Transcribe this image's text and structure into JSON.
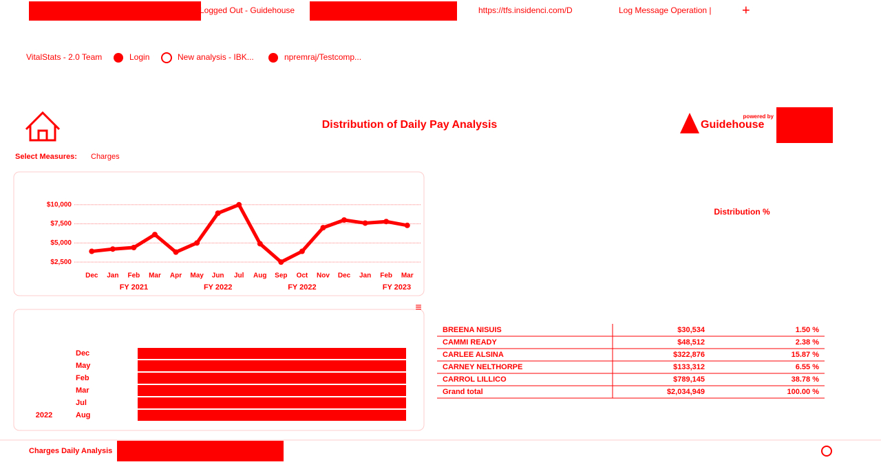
{
  "browser": {
    "tabs": [
      "Logged Out - Guidehouse",
      "https://tfs.insidenci.com/D",
      "Log Message Operation |"
    ],
    "bookmarks": [
      "VitalStats - 2.0 Team",
      "Login",
      "New analysis - IBK...",
      "npremraj/Testcomp..."
    ]
  },
  "dashboard": {
    "title": "Distribution of Daily Pay Analysis",
    "logo_caption": "powered by",
    "logo": "Guidehouse",
    "measure_label": "Select Measures:",
    "measure_value": "Charges"
  },
  "chart_data": {
    "type": "line",
    "categories": [
      "Dec",
      "Jan",
      "Feb",
      "Mar",
      "Apr",
      "May",
      "Jun",
      "Jul",
      "Aug",
      "Sep",
      "Oct",
      "Nov",
      "Dec",
      "Jan",
      "Feb",
      "Mar"
    ],
    "series": [
      {
        "name": "Charges",
        "color": "#ff0000",
        "values": [
          3900,
          4200,
          4400,
          6100,
          3800,
          5000,
          8900,
          10000,
          4900,
          2500,
          3900,
          7000,
          8000,
          7600,
          7800,
          7300
        ]
      }
    ],
    "groups": [
      "FY 2021",
      "FY 2022",
      "FY 2022",
      "FY 2023"
    ],
    "ylim": [
      1700,
      10700
    ],
    "yticks": [
      {
        "value": 2500,
        "label": "$2,500"
      },
      {
        "value": 5000,
        "label": "$5,000"
      },
      {
        "value": 7500,
        "label": "$7,500"
      },
      {
        "value": 10000,
        "label": "$10,000"
      }
    ],
    "grid": true
  },
  "bars": {
    "year": "2022",
    "categories": [
      "Dec",
      "May",
      "Feb",
      "Mar",
      "Jul",
      "Aug"
    ]
  },
  "table": {
    "header": [
      "Distribution %"
    ],
    "rows": [
      [
        "BREENA NISUIS",
        "$30,534",
        "1.50 %"
      ],
      [
        "CAMMI READY",
        "$48,512",
        "2.38 %"
      ],
      [
        "CARLEE ALSINA",
        "$322,876",
        "15.87 %"
      ],
      [
        "CARNEY NELTHORPE",
        "$133,312",
        "6.55 %"
      ],
      [
        "CARROL LILLICO",
        "$789,145",
        "38.78 %"
      ],
      [
        "Grand total",
        "$2,034,949",
        "100.00 %"
      ]
    ]
  },
  "footer": {
    "sheet": "Charges Daily Analysis"
  }
}
